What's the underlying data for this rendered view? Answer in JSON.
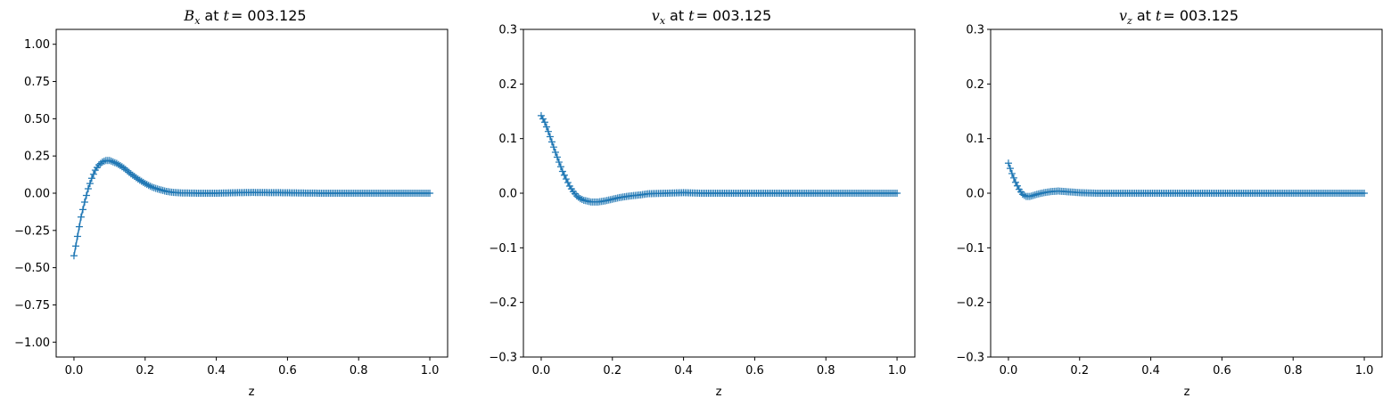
{
  "chart_data": [
    {
      "type": "line",
      "title": "B_x at t = 003.125",
      "title_parts": {
        "symbol": "B",
        "subscript": "x",
        "at": "at",
        "t": "t",
        "eq": "= 003.125"
      },
      "xlabel": "z",
      "ylabel": "",
      "xlim": [
        -0.05,
        1.05
      ],
      "ylim": [
        -1.1,
        1.1
      ],
      "xticks": [
        0.0,
        0.2,
        0.4,
        0.6,
        0.8,
        1.0
      ],
      "xtick_labels": [
        "0.0",
        "0.2",
        "0.4",
        "0.6",
        "0.8",
        "1.0"
      ],
      "yticks": [
        -1.0,
        -0.75,
        -0.5,
        -0.25,
        0.0,
        0.25,
        0.5,
        0.75,
        1.0
      ],
      "ytick_labels": [
        "−1.00",
        "−0.75",
        "−0.50",
        "−0.25",
        "0.00",
        "0.25",
        "0.50",
        "0.75",
        "1.00"
      ],
      "marker": "+",
      "color": "#1f77b4",
      "series": [
        {
          "x": [
            0.0,
            0.01,
            0.02,
            0.03,
            0.04,
            0.05,
            0.06,
            0.07,
            0.08,
            0.09,
            0.1,
            0.12,
            0.14,
            0.16,
            0.18,
            0.2,
            0.22,
            0.24,
            0.26,
            0.28,
            0.3,
            0.35,
            0.4,
            0.45,
            0.5,
            0.55,
            0.6,
            0.65,
            0.7,
            0.8,
            0.9,
            1.0
          ],
          "y": [
            -0.42,
            -0.29,
            -0.16,
            -0.06,
            0.03,
            0.1,
            0.155,
            0.19,
            0.21,
            0.22,
            0.22,
            0.2,
            0.17,
            0.13,
            0.095,
            0.065,
            0.04,
            0.025,
            0.012,
            0.005,
            0.002,
            0.0,
            0.0,
            0.003,
            0.005,
            0.004,
            0.003,
            0.001,
            0.0,
            0.0,
            0.0,
            0.0
          ]
        }
      ]
    },
    {
      "type": "line",
      "title": "v_x at t = 003.125",
      "title_parts": {
        "symbol": "v",
        "subscript": "x",
        "at": "at",
        "t": "t",
        "eq": "= 003.125"
      },
      "xlabel": "z",
      "ylabel": "",
      "xlim": [
        -0.05,
        1.05
      ],
      "ylim": [
        -0.3,
        0.3
      ],
      "xticks": [
        0.0,
        0.2,
        0.4,
        0.6,
        0.8,
        1.0
      ],
      "xtick_labels": [
        "0.0",
        "0.2",
        "0.4",
        "0.6",
        "0.8",
        "1.0"
      ],
      "yticks": [
        -0.3,
        -0.2,
        -0.1,
        0.0,
        0.1,
        0.2,
        0.3
      ],
      "ytick_labels": [
        "−0.3",
        "−0.2",
        "−0.1",
        "0.0",
        "0.1",
        "0.2",
        "0.3"
      ],
      "marker": "+",
      "color": "#1f77b4",
      "series": [
        {
          "x": [
            0.0,
            0.01,
            0.02,
            0.03,
            0.04,
            0.05,
            0.06,
            0.07,
            0.08,
            0.09,
            0.1,
            0.11,
            0.12,
            0.14,
            0.16,
            0.18,
            0.2,
            0.22,
            0.25,
            0.28,
            0.3,
            0.35,
            0.4,
            0.45,
            0.5,
            0.6,
            0.7,
            0.8,
            0.9,
            1.0
          ],
          "y": [
            0.142,
            0.13,
            0.113,
            0.094,
            0.075,
            0.057,
            0.04,
            0.026,
            0.013,
            0.003,
            -0.005,
            -0.01,
            -0.013,
            -0.016,
            -0.016,
            -0.014,
            -0.011,
            -0.008,
            -0.005,
            -0.003,
            -0.001,
            0.0,
            0.001,
            0.0,
            0.0,
            0.0,
            0.0,
            0.0,
            0.0,
            0.0
          ]
        }
      ]
    },
    {
      "type": "line",
      "title": "v_z at t = 003.125",
      "title_parts": {
        "symbol": "v",
        "subscript": "z",
        "at": "at",
        "t": "t",
        "eq": "= 003.125"
      },
      "xlabel": "z",
      "ylabel": "",
      "xlim": [
        -0.05,
        1.05
      ],
      "ylim": [
        -0.3,
        0.3
      ],
      "xticks": [
        0.0,
        0.2,
        0.4,
        0.6,
        0.8,
        1.0
      ],
      "xtick_labels": [
        "0.0",
        "0.2",
        "0.4",
        "0.6",
        "0.8",
        "1.0"
      ],
      "yticks": [
        -0.3,
        -0.2,
        -0.1,
        0.0,
        0.1,
        0.2,
        0.3
      ],
      "ytick_labels": [
        "−0.3",
        "−0.2",
        "−0.1",
        "0.0",
        "0.1",
        "0.2",
        "0.3"
      ],
      "marker": "+",
      "color": "#1f77b4",
      "series": [
        {
          "x": [
            0.0,
            0.01,
            0.02,
            0.03,
            0.04,
            0.05,
            0.06,
            0.07,
            0.08,
            0.1,
            0.12,
            0.14,
            0.16,
            0.18,
            0.2,
            0.25,
            0.3,
            0.4,
            0.5,
            0.6,
            0.7,
            0.8,
            0.9,
            1.0
          ],
          "y": [
            0.055,
            0.036,
            0.02,
            0.007,
            -0.002,
            -0.006,
            -0.006,
            -0.004,
            -0.002,
            0.001,
            0.003,
            0.004,
            0.003,
            0.002,
            0.001,
            0.0,
            0.0,
            0.0,
            0.0,
            0.0,
            0.0,
            0.0,
            0.0,
            0.0
          ]
        }
      ]
    }
  ]
}
